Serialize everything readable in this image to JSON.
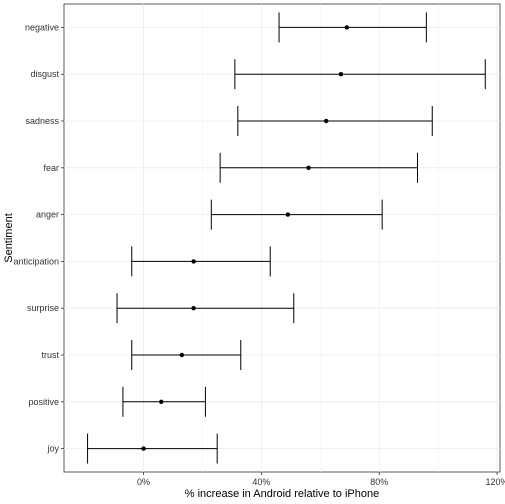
{
  "chart_data": {
    "type": "errorbar",
    "title": "",
    "xlabel": "% increase in Android relative to iPhone",
    "ylabel": "Sentiment",
    "xlim": [
      -0.27,
      1.21
    ],
    "xticks": [
      0.0,
      0.4,
      0.8,
      1.2
    ],
    "xtick_labels": [
      "0%",
      "40%",
      "80%",
      "120%"
    ],
    "grid": true,
    "categories": [
      "negative",
      "disgust",
      "sadness",
      "fear",
      "anger",
      "anticipation",
      "surprise",
      "trust",
      "positive",
      "joy"
    ],
    "values": [
      0.69,
      0.67,
      0.62,
      0.56,
      0.49,
      0.17,
      0.17,
      0.13,
      0.06,
      0.0
    ],
    "lower": [
      0.46,
      0.31,
      0.32,
      0.26,
      0.23,
      -0.04,
      -0.09,
      -0.04,
      -0.07,
      -0.19
    ],
    "upper": [
      0.96,
      1.16,
      0.98,
      0.93,
      0.81,
      0.43,
      0.51,
      0.33,
      0.21,
      0.25
    ]
  }
}
